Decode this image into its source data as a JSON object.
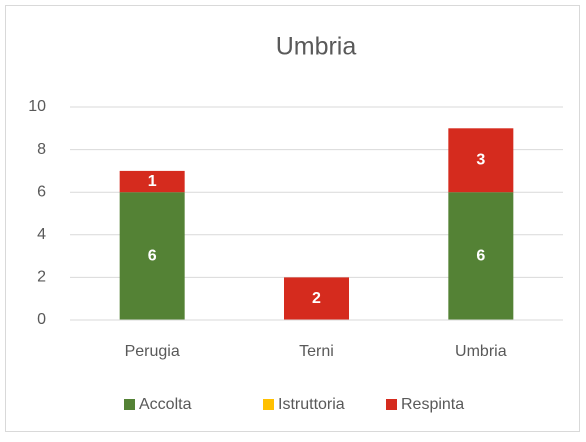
{
  "chart_data": {
    "type": "stacked-bar",
    "title": "Umbria",
    "categories": [
      "Perugia",
      "Terni",
      "Umbria"
    ],
    "series": [
      {
        "name": "Accolta",
        "color": "#548235",
        "values": [
          6,
          0,
          6
        ]
      },
      {
        "name": "Istruttoria",
        "color": "#ffc000",
        "values": [
          0,
          0,
          0
        ]
      },
      {
        "name": "Respinta",
        "color": "#d52b1e",
        "values": [
          1,
          2,
          3
        ]
      }
    ],
    "ylim": [
      0,
      10
    ],
    "yticks": [
      0,
      2,
      4,
      6,
      8,
      10
    ],
    "grid": true,
    "legend": "bottom"
  }
}
